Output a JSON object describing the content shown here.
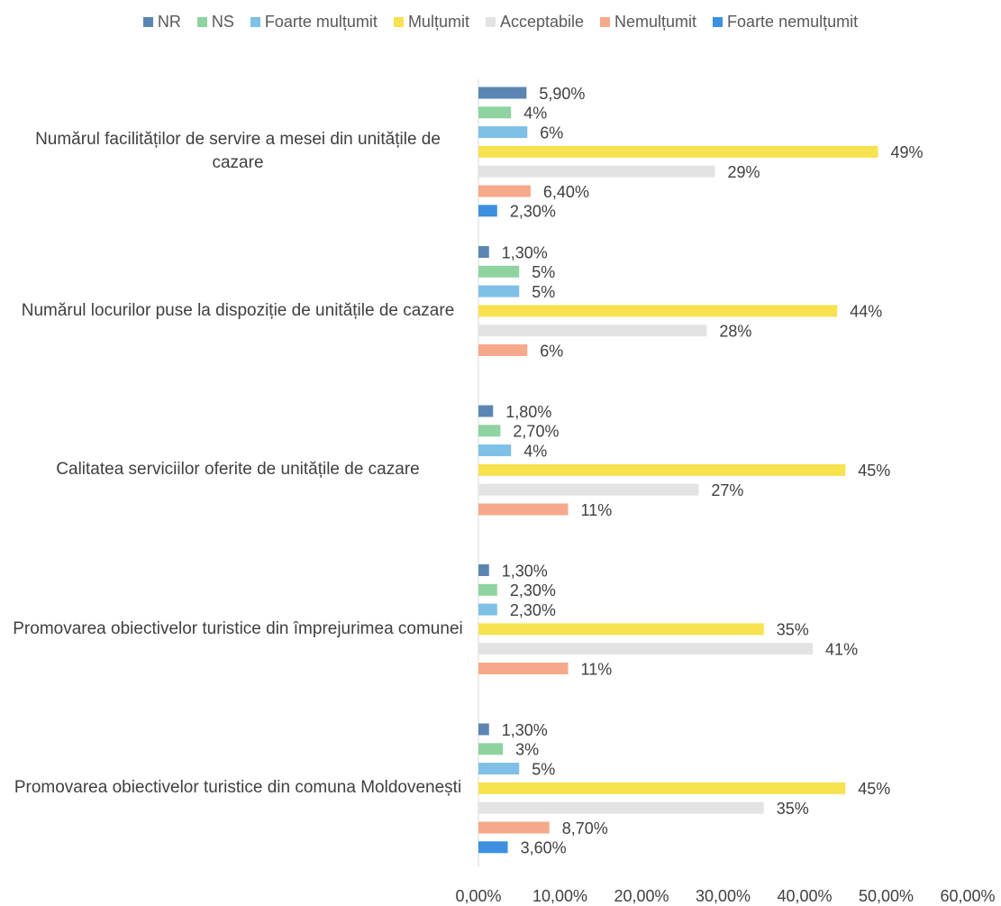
{
  "chart_data": {
    "type": "hbar",
    "categories": [
      "Numărul facilităților de servire a mesei din unitățile de cazare",
      "Numărul locurilor puse la dispoziție de unitățile de cazare",
      "Calitatea serviciilor oferite de unitățile de cazare",
      "Promovarea obiectivelor turistice din împrejurimea comunei",
      "Promovarea obiectivelor turistice din comuna Moldovenești"
    ],
    "series": [
      {
        "name": "NR",
        "color": "#5b86b3",
        "values": [
          5.9,
          1.3,
          1.8,
          1.3,
          1.3
        ],
        "value_labels": [
          "5,90%",
          "1,30%",
          "1,80%",
          "1,30%",
          "1,30%"
        ]
      },
      {
        "name": "NS",
        "color": "#8fd3a0",
        "values": [
          4,
          5,
          2.7,
          2.3,
          3
        ],
        "value_labels": [
          "4%",
          "5%",
          "2,70%",
          "2,30%",
          "3%"
        ]
      },
      {
        "name": "Foarte mulțumit",
        "color": "#7ec0e6",
        "values": [
          6,
          5,
          4,
          2.3,
          5
        ],
        "value_labels": [
          "6%",
          "5%",
          "4%",
          "2,30%",
          "5%"
        ]
      },
      {
        "name": "Mulțumit",
        "color": "#f7e24f",
        "values": [
          49,
          44,
          45,
          35,
          45
        ],
        "value_labels": [
          "49%",
          "44%",
          "45%",
          "35%",
          "45%"
        ]
      },
      {
        "name": "Acceptabile",
        "color": "#e3e3e3",
        "values": [
          29,
          28,
          27,
          41,
          35
        ],
        "value_labels": [
          "29%",
          "28%",
          "27%",
          "41%",
          "35%"
        ]
      },
      {
        "name": "Nemulțumit",
        "color": "#f6a98a",
        "values": [
          6.4,
          6,
          11,
          11,
          8.7
        ],
        "value_labels": [
          "6,40%",
          "6%",
          "11%",
          "11%",
          "8,70%"
        ]
      },
      {
        "name": "Foarte nemulțumit",
        "color": "#3d8fe0",
        "values": [
          2.3,
          null,
          null,
          null,
          3.6
        ],
        "value_labels": [
          "2,30%",
          null,
          null,
          null,
          "3,60%"
        ]
      }
    ],
    "xlim": [
      0,
      60
    ],
    "xticks": [
      {
        "value": 0,
        "label": "0,00%"
      },
      {
        "value": 10,
        "label": "10,00%"
      },
      {
        "value": 20,
        "label": "20,00%"
      },
      {
        "value": 30,
        "label": "30,00%"
      },
      {
        "value": 40,
        "label": "40,00%"
      },
      {
        "value": 50,
        "label": "50,00%"
      },
      {
        "value": 60,
        "label": "60,00%"
      }
    ],
    "legend": "top"
  }
}
